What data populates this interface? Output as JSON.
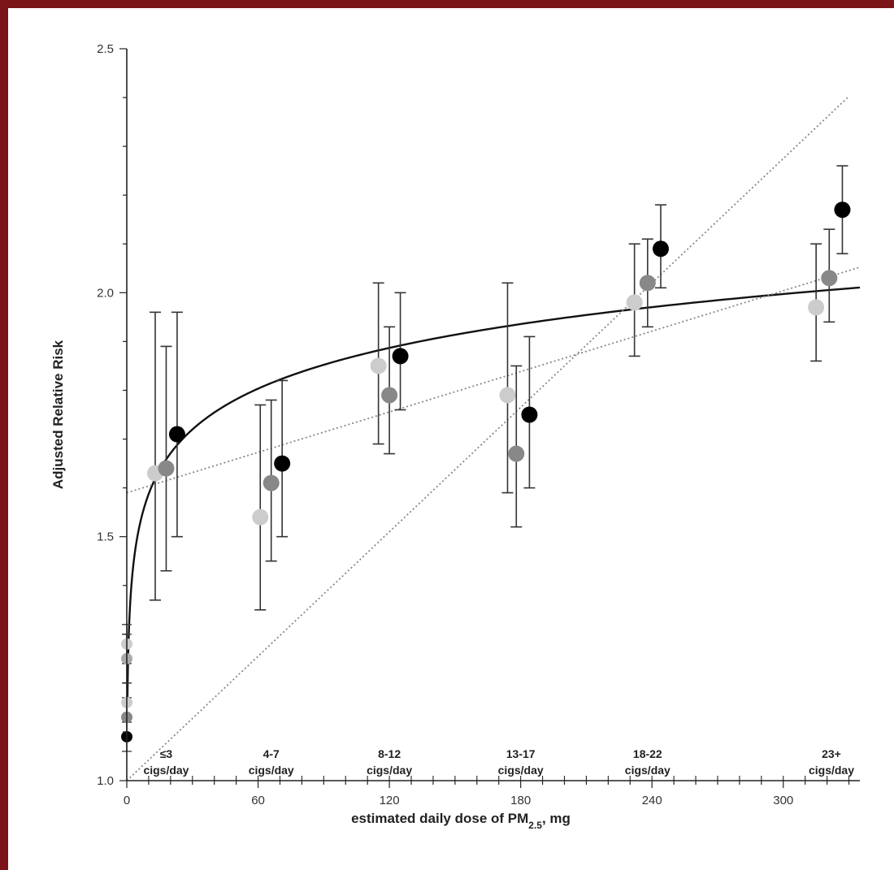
{
  "chart_data": {
    "type": "scatter",
    "xlabel": "estimated daily dose of PM",
    "xlabel_sub": "2.5",
    "xlabel_suffix": ", mg",
    "ylabel": "Adjusted Relative Risk",
    "xlim": [
      0,
      335
    ],
    "ylim": [
      1.0,
      2.5
    ],
    "x_ticks": [
      "0",
      "60",
      "120",
      "180",
      "240",
      "300"
    ],
    "x_tick_values": [
      0,
      60,
      120,
      180,
      240,
      300
    ],
    "y_ticks": [
      "1.0",
      "1.5",
      "2.0",
      "2.5"
    ],
    "y_tick_values": [
      1.0,
      1.5,
      2.0,
      2.5
    ],
    "grid": false,
    "groups": [
      {
        "line1": "≤3",
        "line2": "cigs/day",
        "x": 18
      },
      {
        "line1": "4-7",
        "line2": "cigs/day",
        "x": 66
      },
      {
        "line1": "8-12",
        "line2": "cigs/day",
        "x": 120
      },
      {
        "line1": "13-17",
        "line2": "cigs/day",
        "x": 180
      },
      {
        "line1": "18-22",
        "line2": "cigs/day",
        "x": 238
      },
      {
        "line1": "23+",
        "line2": "cigs/day",
        "x": 322
      }
    ],
    "series": [
      {
        "color": "#cccccc",
        "points": [
          {
            "x": 13,
            "y": 1.63,
            "lo": 1.37,
            "hi": 1.96
          },
          {
            "x": 61,
            "y": 1.54,
            "lo": 1.35,
            "hi": 1.77
          },
          {
            "x": 115,
            "y": 1.85,
            "lo": 1.69,
            "hi": 2.02
          },
          {
            "x": 174,
            "y": 1.79,
            "lo": 1.59,
            "hi": 2.02
          },
          {
            "x": 232,
            "y": 1.98,
            "lo": 1.87,
            "hi": 2.1
          },
          {
            "x": 315,
            "y": 1.97,
            "lo": 1.86,
            "hi": 2.1
          }
        ]
      },
      {
        "color": "#888888",
        "points": [
          {
            "x": 18,
            "y": 1.64,
            "lo": 1.43,
            "hi": 1.89
          },
          {
            "x": 66,
            "y": 1.61,
            "lo": 1.45,
            "hi": 1.78
          },
          {
            "x": 120,
            "y": 1.79,
            "lo": 1.67,
            "hi": 1.93
          },
          {
            "x": 178,
            "y": 1.67,
            "lo": 1.52,
            "hi": 1.85
          },
          {
            "x": 238,
            "y": 2.02,
            "lo": 1.93,
            "hi": 2.11
          },
          {
            "x": 321,
            "y": 2.03,
            "lo": 1.94,
            "hi": 2.13
          }
        ]
      },
      {
        "color": "#000000",
        "points": [
          {
            "x": 23,
            "y": 1.71,
            "lo": 1.5,
            "hi": 1.96
          },
          {
            "x": 71,
            "y": 1.65,
            "lo": 1.5,
            "hi": 1.82
          },
          {
            "x": 125,
            "y": 1.87,
            "lo": 1.76,
            "hi": 2.0
          },
          {
            "x": 184,
            "y": 1.75,
            "lo": 1.6,
            "hi": 1.91
          },
          {
            "x": 244,
            "y": 2.09,
            "lo": 2.01,
            "hi": 2.18
          },
          {
            "x": 327,
            "y": 2.17,
            "lo": 2.08,
            "hi": 2.26
          }
        ]
      }
    ],
    "low_dose_points": [
      {
        "x": 0,
        "y": 1.28,
        "lo": 1.24,
        "hi": 1.32,
        "color": "#cccccc"
      },
      {
        "x": 0,
        "y": 1.25,
        "lo": 1.2,
        "hi": 1.3,
        "color": "#aaaaaa"
      },
      {
        "x": 0,
        "y": 1.16,
        "lo": 1.12,
        "hi": 1.2,
        "color": "#cccccc"
      },
      {
        "x": 0,
        "y": 1.13,
        "lo": 1.09,
        "hi": 1.17,
        "color": "#888888"
      },
      {
        "x": 0,
        "y": 1.09,
        "lo": 1.06,
        "hi": 1.12,
        "color": "#000000"
      }
    ],
    "fit_lines": [
      {
        "kind": "log",
        "style": "solid",
        "color": "#111111",
        "a": 1.31,
        "b": 0.1205,
        "x_from": 0.3,
        "x_to": 335
      },
      {
        "kind": "linear",
        "style": "dotted",
        "color": "#888888",
        "a": 1.59,
        "b": 0.00138,
        "x_from": 0,
        "x_to": 335
      },
      {
        "kind": "linear",
        "style": "dotted",
        "color": "#888888",
        "a": 1.0,
        "b": 0.00425,
        "x_from": 0,
        "x_to": 330
      }
    ]
  }
}
